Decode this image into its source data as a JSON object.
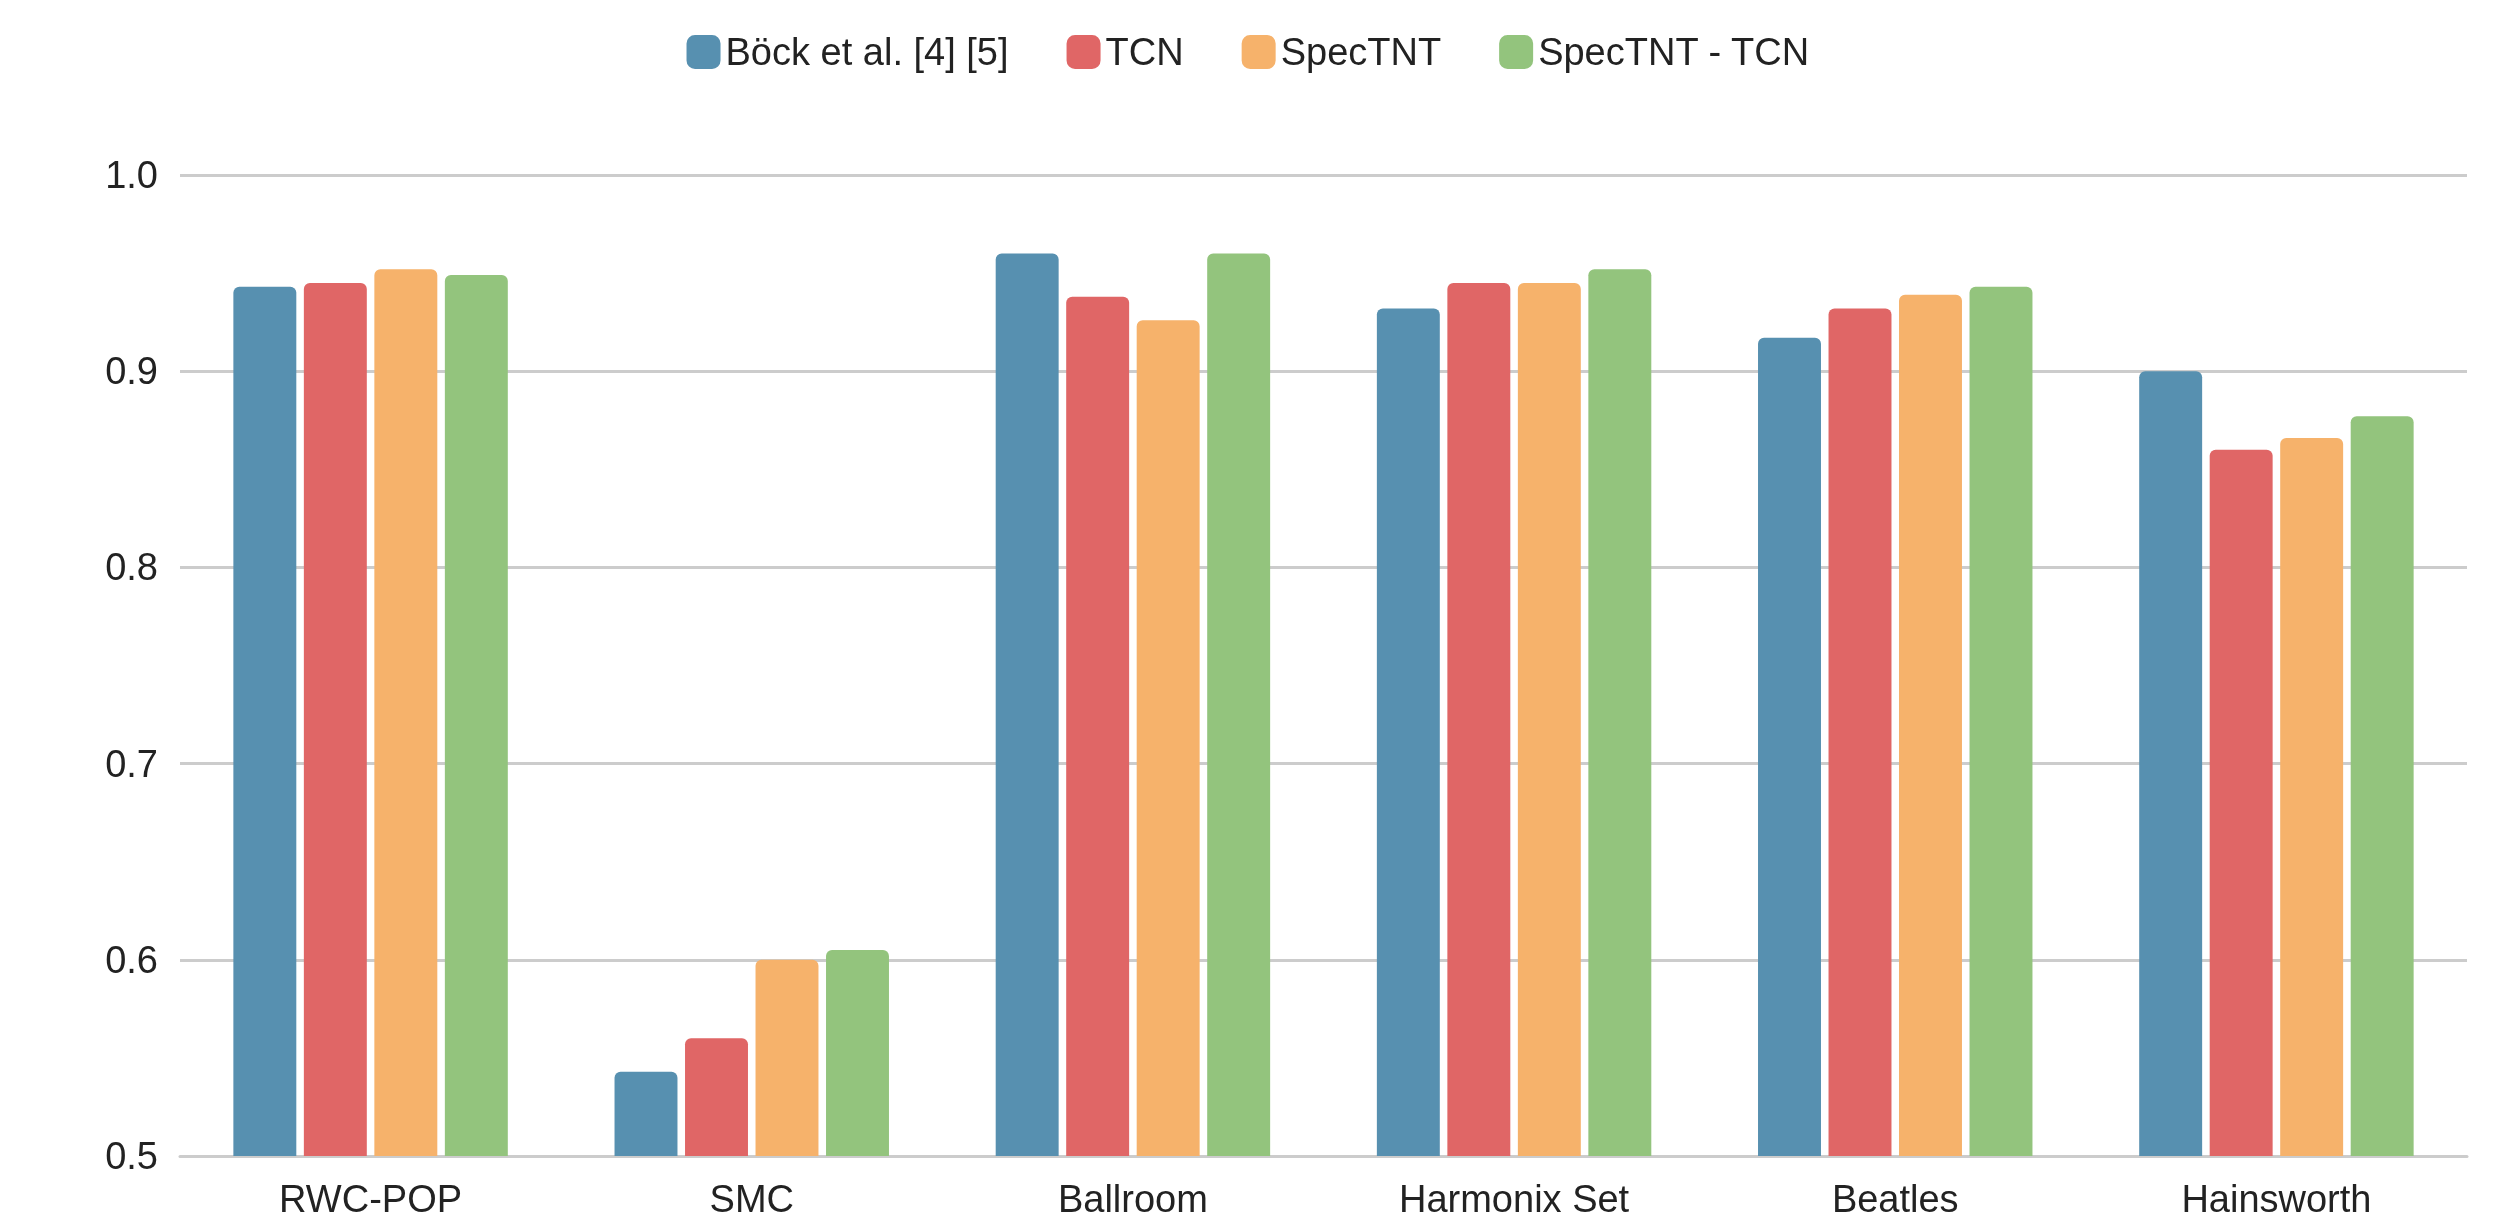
{
  "chart_data": {
    "type": "bar",
    "categories": [
      "RWC-POP",
      "SMC",
      "Ballroom",
      "Harmonix Set",
      "Beatles",
      "Hainsworth"
    ],
    "series": [
      {
        "name": "Böck et al. [4] [5]",
        "color": "#5790b0",
        "values": [
          0.943,
          0.543,
          0.96,
          0.932,
          0.917,
          0.9
        ]
      },
      {
        "name": "TCN",
        "color": "#e06666",
        "values": [
          0.945,
          0.56,
          0.938,
          0.945,
          0.932,
          0.86
        ]
      },
      {
        "name": "SpecTNT",
        "color": "#f6b26b",
        "values": [
          0.952,
          0.6,
          0.926,
          0.945,
          0.939,
          0.866
        ]
      },
      {
        "name": "SpecTNT - TCN",
        "color": "#93c47d",
        "values": [
          0.949,
          0.605,
          0.96,
          0.952,
          0.943,
          0.877
        ]
      }
    ],
    "ylim": [
      0.5,
      1.0
    ],
    "yticks": [
      {
        "value": 0.5,
        "label": "0.5"
      },
      {
        "value": 0.6,
        "label": "0.6"
      },
      {
        "value": 0.7,
        "label": "0.7"
      },
      {
        "value": 0.8,
        "label": "0.8"
      },
      {
        "value": 0.9,
        "label": "0.9"
      },
      {
        "value": 1.0,
        "label": "1.0"
      }
    ],
    "grid": "y",
    "legend": "top"
  }
}
